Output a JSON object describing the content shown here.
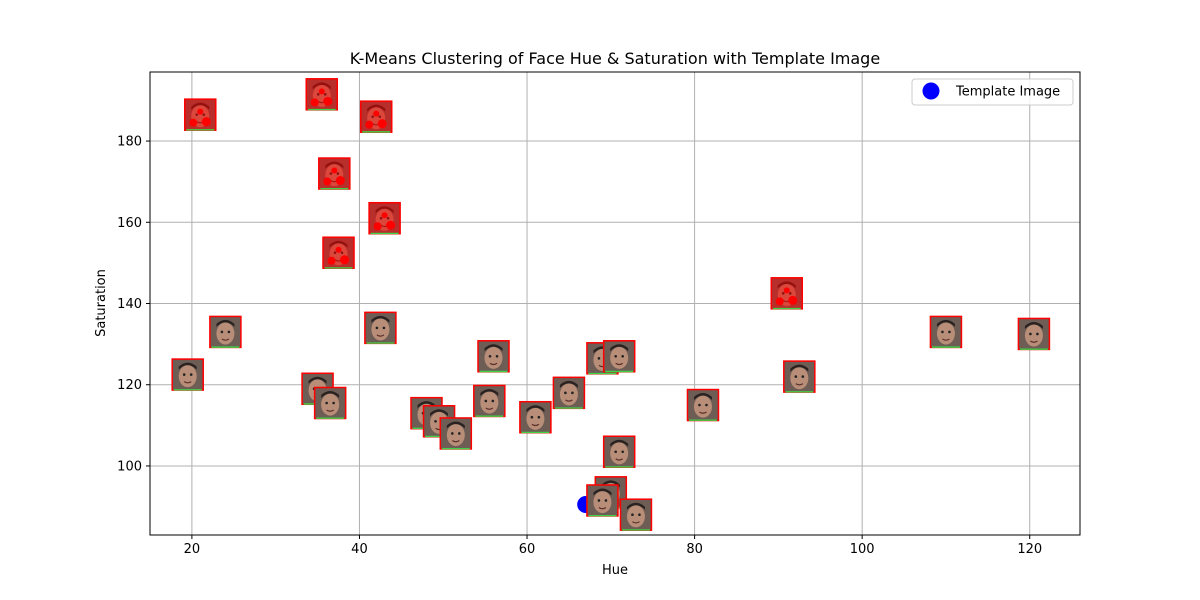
{
  "chart_data": {
    "type": "scatter",
    "title": "K-Means Clustering of Face Hue & Saturation with Template Image",
    "xlabel": "Hue",
    "ylabel": "Saturation",
    "xlim": [
      15,
      126
    ],
    "ylim": [
      83,
      197
    ],
    "xticks": [
      20,
      40,
      60,
      80,
      100,
      120
    ],
    "yticks": [
      100,
      120,
      140,
      160,
      180
    ],
    "grid": true,
    "legend": {
      "placement": "top-right",
      "entries": [
        "Template Image"
      ]
    },
    "template_point": {
      "x": 67,
      "y": 90.5,
      "color": "#0000ff"
    },
    "face_thumbnails": [
      {
        "x": 21,
        "y": 186.5,
        "tone": "red"
      },
      {
        "x": 35.5,
        "y": 191.5,
        "tone": "red"
      },
      {
        "x": 42,
        "y": 186,
        "tone": "red"
      },
      {
        "x": 37,
        "y": 172,
        "tone": "red"
      },
      {
        "x": 43,
        "y": 161,
        "tone": "red"
      },
      {
        "x": 37.5,
        "y": 152.5,
        "tone": "red"
      },
      {
        "x": 24,
        "y": 133,
        "tone": "face"
      },
      {
        "x": 19.5,
        "y": 122.5,
        "tone": "face"
      },
      {
        "x": 42.5,
        "y": 134,
        "tone": "face"
      },
      {
        "x": 35,
        "y": 119,
        "tone": "face"
      },
      {
        "x": 36.5,
        "y": 115.5,
        "tone": "face"
      },
      {
        "x": 48,
        "y": 113,
        "tone": "face"
      },
      {
        "x": 49.5,
        "y": 111,
        "tone": "face"
      },
      {
        "x": 51.5,
        "y": 108,
        "tone": "face"
      },
      {
        "x": 56,
        "y": 127,
        "tone": "face"
      },
      {
        "x": 55.5,
        "y": 116,
        "tone": "face"
      },
      {
        "x": 61,
        "y": 112,
        "tone": "face"
      },
      {
        "x": 65,
        "y": 118,
        "tone": "face"
      },
      {
        "x": 69,
        "y": 126.5,
        "tone": "face"
      },
      {
        "x": 71,
        "y": 127,
        "tone": "face"
      },
      {
        "x": 71,
        "y": 103.5,
        "tone": "face"
      },
      {
        "x": 70,
        "y": 93.5,
        "tone": "face"
      },
      {
        "x": 69,
        "y": 91.5,
        "tone": "face"
      },
      {
        "x": 73,
        "y": 88,
        "tone": "face"
      },
      {
        "x": 81,
        "y": 115,
        "tone": "face"
      },
      {
        "x": 91,
        "y": 142.5,
        "tone": "red"
      },
      {
        "x": 92.5,
        "y": 122,
        "tone": "face"
      },
      {
        "x": 110,
        "y": 133,
        "tone": "face"
      },
      {
        "x": 120.5,
        "y": 132.5,
        "tone": "face"
      }
    ]
  }
}
